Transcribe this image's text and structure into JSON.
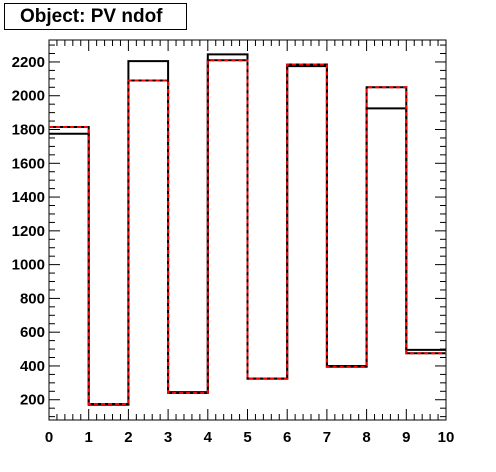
{
  "title": "Object: PV ndof",
  "chart_data": {
    "type": "histogram",
    "title": "Object: PV ndof",
    "xlabel": "",
    "ylabel": "",
    "xlim": [
      0,
      10
    ],
    "ylim": [
      80,
      2330
    ],
    "x_ticks": [
      "0",
      "1",
      "2",
      "3",
      "4",
      "5",
      "6",
      "7",
      "8",
      "9",
      "10"
    ],
    "y_ticks": [
      "200",
      "400",
      "600",
      "800",
      "1000",
      "1200",
      "1400",
      "1600",
      "1800",
      "2000",
      "2200"
    ],
    "bin_edges": [
      0,
      1,
      2,
      3,
      4,
      5,
      6,
      7,
      8,
      9,
      10
    ],
    "series": [
      {
        "style": "solid",
        "color": "#000000",
        "values": [
          1775,
          170,
          2205,
          245,
          2245,
          325,
          2175,
          400,
          1925,
          495
        ]
      },
      {
        "style": "dashed",
        "color": "#ff0000",
        "values": [
          1815,
          175,
          2090,
          240,
          2210,
          325,
          2185,
          395,
          2050,
          475
        ]
      }
    ]
  }
}
